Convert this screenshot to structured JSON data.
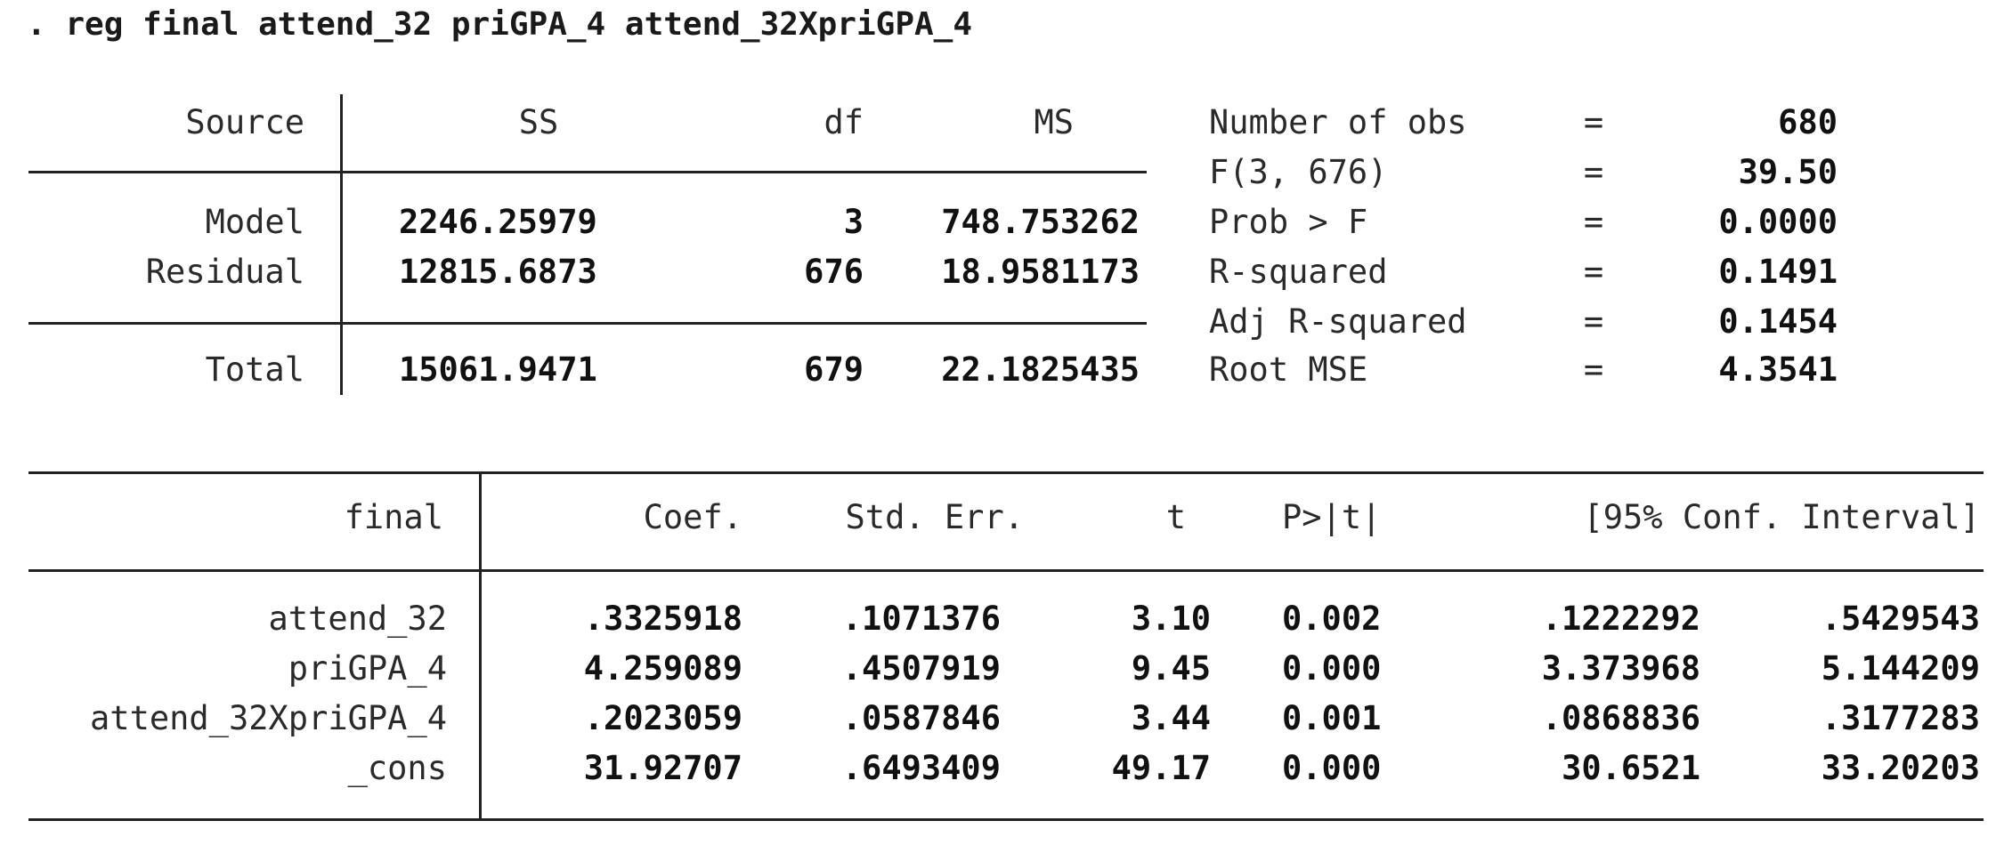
{
  "command": ". reg final attend_32 priGPA_4 attend_32XpriGPA_4",
  "anova": {
    "headers": {
      "source": "Source",
      "ss": "SS",
      "df": "df",
      "ms": "MS"
    },
    "rows": [
      {
        "source": "Model",
        "ss": "2246.25979",
        "df": "3",
        "ms": "748.753262"
      },
      {
        "source": "Residual",
        "ss": "12815.6873",
        "df": "676",
        "ms": "18.9581173"
      }
    ],
    "total": {
      "source": "Total",
      "ss": "15061.9471",
      "df": "679",
      "ms": "22.1825435"
    }
  },
  "stats": [
    {
      "label": "Number of obs",
      "eq": "=",
      "value": "680"
    },
    {
      "label": "F(3, 676)",
      "eq": "=",
      "value": "39.50"
    },
    {
      "label": "Prob > F",
      "eq": "=",
      "value": "0.0000"
    },
    {
      "label": "R-squared",
      "eq": "=",
      "value": "0.1491"
    },
    {
      "label": "Adj R-squared",
      "eq": "=",
      "value": "0.1454"
    },
    {
      "label": "Root MSE",
      "eq": "=",
      "value": "4.3541"
    }
  ],
  "coef_table": {
    "headers": {
      "var": "final",
      "coef": "Coef.",
      "se": "Std. Err.",
      "t": "t",
      "p": "P>|t|",
      "ci": "[95% Conf. Interval]"
    },
    "rows": [
      {
        "var": "attend_32",
        "coef": ".3325918",
        "se": ".1071376",
        "t": "3.10",
        "p": "0.002",
        "lo": ".1222292",
        "hi": ".5429543"
      },
      {
        "var": "priGPA_4",
        "coef": "4.259089",
        "se": ".4507919",
        "t": "9.45",
        "p": "0.000",
        "lo": "3.373968",
        "hi": "5.144209"
      },
      {
        "var": "attend_32XpriGPA_4",
        "coef": ".2023059",
        "se": ".0587846",
        "t": "3.44",
        "p": "0.001",
        "lo": ".0868836",
        "hi": ".3177283"
      },
      {
        "var": "_cons",
        "coef": "31.92707",
        "se": ".6493409",
        "t": "49.17",
        "p": "0.000",
        "lo": "30.6521",
        "hi": "33.20203"
      }
    ]
  }
}
